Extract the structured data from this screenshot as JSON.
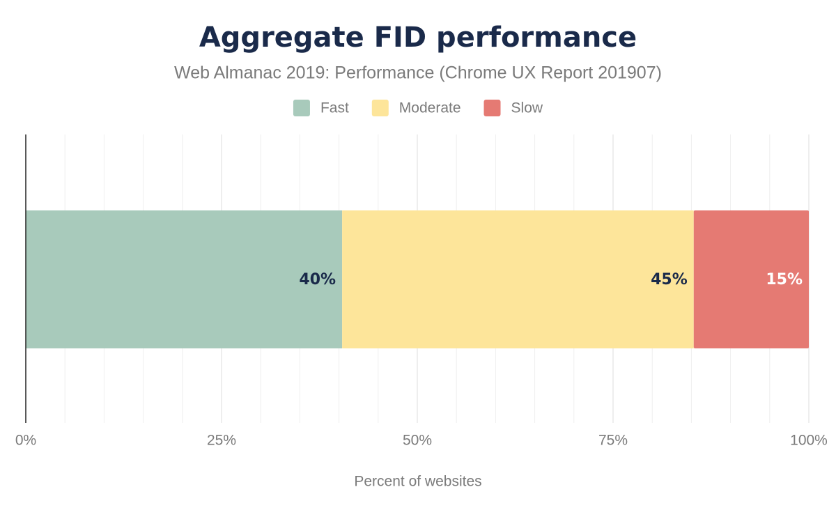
{
  "chart_data": {
    "type": "stacked-barh",
    "title": "Aggregate FID performance",
    "subtitle": "Web Almanac 2019: Performance (Chrome UX Report 201907)",
    "x_label": "Percent of websites",
    "series": [
      {
        "name": "Fast",
        "color": "#a8cabb",
        "label_color": "#1a2a4a",
        "values": [
          40.4
        ],
        "value_labels": [
          "40%"
        ]
      },
      {
        "name": "Moderate",
        "color": "#fde59a",
        "label_color": "#1a2a4a",
        "values": [
          44.9
        ],
        "value_labels": [
          "45%"
        ]
      },
      {
        "name": "Slow",
        "color": "#e57a73",
        "label_color": "#ffffff",
        "values": [
          14.7
        ],
        "value_labels": [
          "15%"
        ]
      }
    ],
    "xlim": [
      0,
      100
    ],
    "xticks": [
      {
        "value": 0,
        "label": "0%"
      },
      {
        "value": 25,
        "label": "25%"
      },
      {
        "value": 50,
        "label": "50%"
      },
      {
        "value": 75,
        "label": "75%"
      },
      {
        "value": 100,
        "label": "100%"
      }
    ],
    "minor_xticks": [
      5,
      10,
      15,
      20,
      30,
      35,
      40,
      45,
      55,
      60,
      65,
      70,
      80,
      85,
      90,
      95
    ],
    "grid": true,
    "legend": "top"
  }
}
